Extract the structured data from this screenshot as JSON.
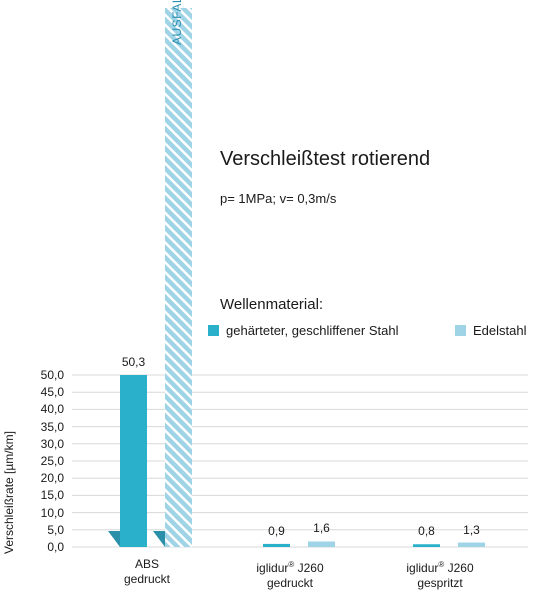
{
  "chart_data": {
    "type": "bar",
    "title": "Verschleißtest rotierend",
    "subtitle": "p= 1MPa; v= 0,3m/s",
    "legend_title": "Wellenmaterial:",
    "ylabel": "Verschleißrate [µm/km]",
    "ylim": [
      0,
      50
    ],
    "yticks": [
      "0,0",
      "5,0",
      "10,0",
      "15,0",
      "20,0",
      "25,0",
      "30,0",
      "35,0",
      "40,0",
      "45,0",
      "50,0"
    ],
    "categories": [
      {
        "line1": "ABS",
        "sup": "",
        "line1b": "",
        "line2": "gedruckt"
      },
      {
        "line1": "iglidur",
        "sup": "®",
        "line1b": " J260",
        "line2": "gedruckt"
      },
      {
        "line1": "iglidur",
        "sup": "®",
        "line1b": " J260",
        "line2": "gespritzt"
      }
    ],
    "series": [
      {
        "name": "gehärteter, geschliffener Stahl",
        "color": "#2bb0cc",
        "values": [
          50.3,
          0.9,
          0.8
        ],
        "labels": [
          "50,3",
          "0,9",
          "0,8"
        ]
      },
      {
        "name": "Edelstahl",
        "color": "#9fd3e6",
        "values": [
          null,
          1.6,
          1.3
        ],
        "labels": [
          "",
          "1,6",
          "1,3"
        ]
      }
    ],
    "failure_label": "AUSFALL",
    "grid": true,
    "legend_position": "top"
  }
}
